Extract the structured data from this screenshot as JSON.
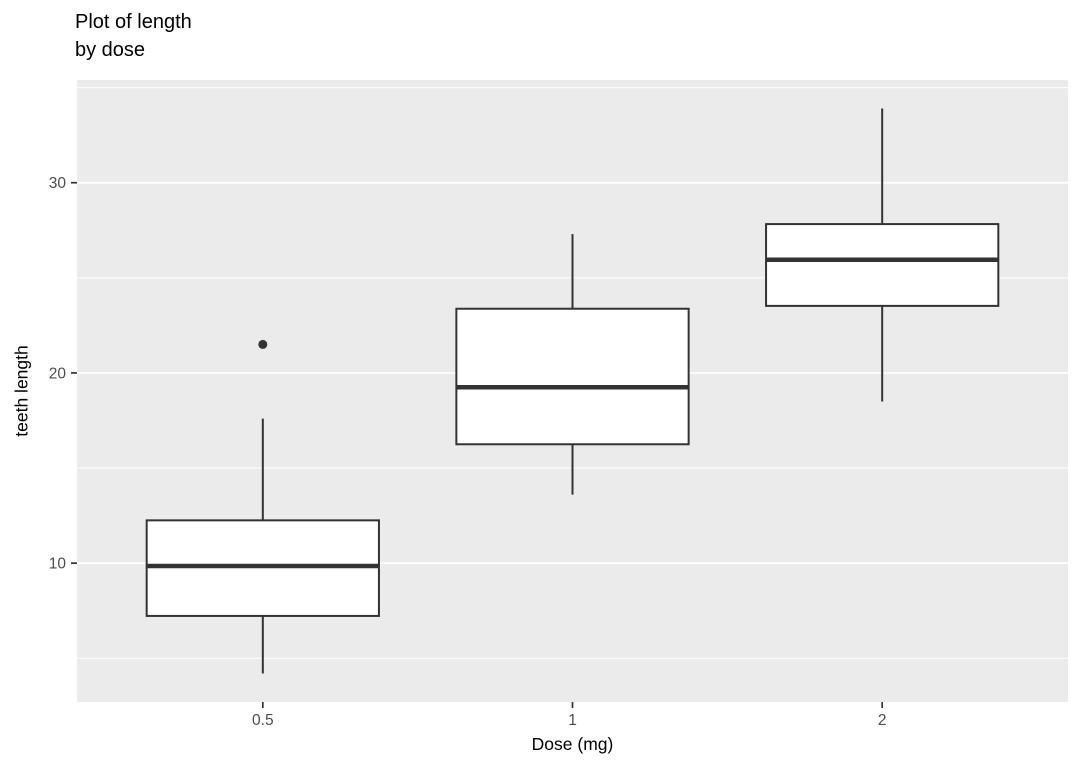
{
  "chart_data": {
    "type": "boxplot",
    "title": "Plot of length\nby dose",
    "xlabel": "Dose (mg)",
    "ylabel": "teeth length",
    "categories": [
      "0.5",
      "1",
      "2"
    ],
    "y_ticks": [
      10,
      20,
      30
    ],
    "y_minor_ticks": [
      5,
      15,
      25,
      35
    ],
    "ylim": [
      2.7,
      35.4
    ],
    "x_domain": [
      0.4,
      3.6
    ],
    "box_width": 0.75,
    "grid": "on",
    "legend": "none",
    "series": [
      {
        "category": "0.5",
        "whisker_min": 4.2,
        "q1": 7.225,
        "median": 9.85,
        "q3": 12.25,
        "whisker_max": 17.6,
        "outliers": [
          21.5
        ]
      },
      {
        "category": "1",
        "whisker_min": 13.6,
        "q1": 16.25,
        "median": 19.25,
        "q3": 23.375,
        "whisker_max": 27.3,
        "outliers": []
      },
      {
        "category": "2",
        "whisker_min": 18.5,
        "q1": 23.525,
        "median": 25.95,
        "q3": 27.825,
        "whisker_max": 33.9,
        "outliers": []
      }
    ],
    "colors": {
      "panel_bg": "#EBEBEB",
      "grid": "#FFFFFF",
      "box_stroke": "#333333",
      "box_fill": "#FFFFFF",
      "tick_mark": "#333333",
      "tick_label": "#4D4D4D",
      "text": "#000000"
    }
  }
}
